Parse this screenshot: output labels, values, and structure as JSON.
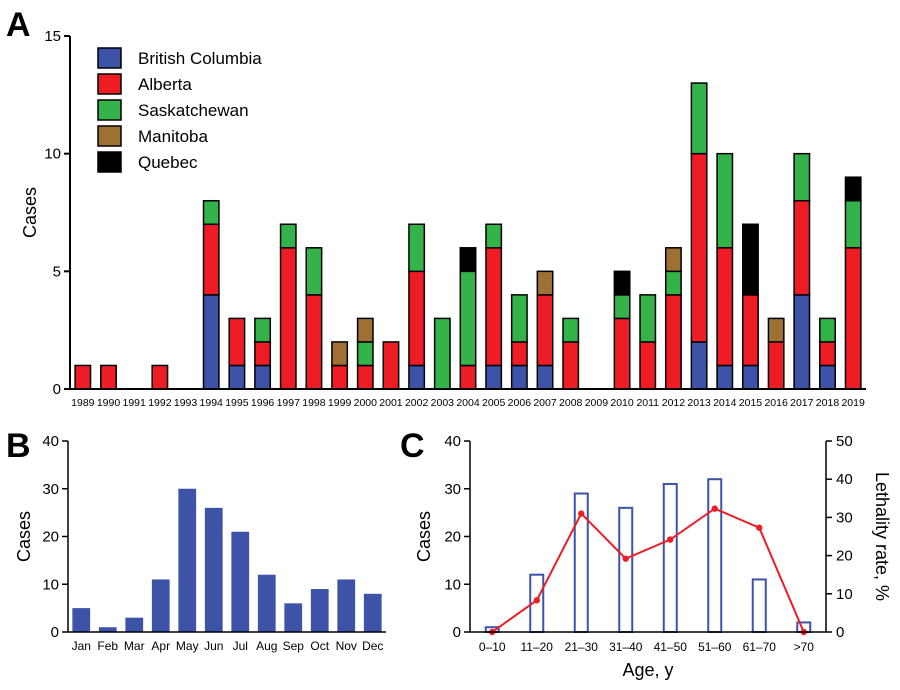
{
  "chart_data": [
    {
      "panel": "A",
      "type": "bar",
      "stacked": true,
      "ylabel": "Cases",
      "ylim": [
        0,
        15
      ],
      "yticks": [
        0,
        5,
        10,
        15
      ],
      "legend_position": "top-left",
      "categories": [
        "1989",
        "1990",
        "1991",
        "1992",
        "1993",
        "1994",
        "1995",
        "1996",
        "1997",
        "1998",
        "1999",
        "2000",
        "2001",
        "2002",
        "2003",
        "2004",
        "2005",
        "2006",
        "2007",
        "2008",
        "2009",
        "2010",
        "2011",
        "2012",
        "2013",
        "2014",
        "2015",
        "2016",
        "2017",
        "2018",
        "2019"
      ],
      "series": [
        {
          "name": "British Columbia",
          "color": "#3c53a8",
          "values": [
            0,
            0,
            0,
            0,
            0,
            4,
            1,
            1,
            0,
            0,
            0,
            0,
            0,
            1,
            0,
            0,
            1,
            1,
            1,
            0,
            0,
            0,
            0,
            0,
            2,
            1,
            1,
            0,
            4,
            1,
            0
          ]
        },
        {
          "name": "Alberta",
          "color": "#ee1c24",
          "values": [
            1,
            1,
            0,
            1,
            0,
            3,
            2,
            1,
            6,
            4,
            1,
            1,
            2,
            4,
            0,
            1,
            5,
            1,
            3,
            2,
            0,
            3,
            2,
            4,
            8,
            5,
            3,
            2,
            4,
            1,
            6
          ]
        },
        {
          "name": "Saskatchewan",
          "color": "#34b34a",
          "values": [
            0,
            0,
            0,
            0,
            0,
            1,
            0,
            1,
            1,
            2,
            0,
            1,
            0,
            2,
            3,
            4,
            1,
            2,
            0,
            1,
            0,
            1,
            2,
            1,
            3,
            4,
            0,
            0,
            2,
            1,
            2
          ]
        },
        {
          "name": "Manitoba",
          "color": "#9e7034",
          "values": [
            0,
            0,
            0,
            0,
            0,
            0,
            0,
            0,
            0,
            0,
            1,
            1,
            0,
            0,
            0,
            0,
            0,
            0,
            1,
            0,
            0,
            0,
            0,
            1,
            0,
            0,
            0,
            1,
            0,
            0,
            0
          ]
        },
        {
          "name": "Quebec",
          "color": "#000000",
          "values": [
            0,
            0,
            0,
            0,
            0,
            0,
            0,
            0,
            0,
            0,
            0,
            0,
            0,
            0,
            0,
            1,
            0,
            0,
            0,
            0,
            0,
            1,
            0,
            0,
            0,
            0,
            3,
            0,
            0,
            0,
            1
          ]
        }
      ]
    },
    {
      "panel": "B",
      "type": "bar",
      "ylabel": "Cases",
      "ylim": [
        0,
        40
      ],
      "yticks": [
        0,
        10,
        20,
        30,
        40
      ],
      "color": "#3c53a8",
      "categories": [
        "Jan",
        "Feb",
        "Mar",
        "Apr",
        "May",
        "Jun",
        "Jul",
        "Aug",
        "Sep",
        "Oct",
        "Nov",
        "Dec"
      ],
      "values": [
        5,
        1,
        3,
        11,
        30,
        26,
        21,
        12,
        6,
        9,
        11,
        8
      ]
    },
    {
      "panel": "C",
      "type": "bar",
      "xlabel": "Age, y",
      "ylabel": "Cases",
      "y2label": "Lethality rate, %",
      "ylim": [
        0,
        40
      ],
      "yticks": [
        0,
        10,
        20,
        30,
        40
      ],
      "y2lim": [
        0,
        50
      ],
      "y2ticks": [
        0,
        10,
        20,
        30,
        40,
        50
      ],
      "bar_color": "#3c53a8",
      "line_color": "#ee1c24",
      "categories": [
        "0–10",
        "11–20",
        "21–30",
        "31–40",
        "41–50",
        "51–60",
        "61–70",
        ">70"
      ],
      "series": [
        {
          "name": "Cases",
          "type": "bar",
          "values": [
            1,
            12,
            29,
            26,
            31,
            32,
            11,
            2
          ]
        },
        {
          "name": "Lethality rate, %",
          "type": "line",
          "axis": "right",
          "values": [
            0,
            8.3,
            31,
            19.2,
            24.2,
            32.3,
            27.3,
            0
          ]
        }
      ]
    }
  ]
}
